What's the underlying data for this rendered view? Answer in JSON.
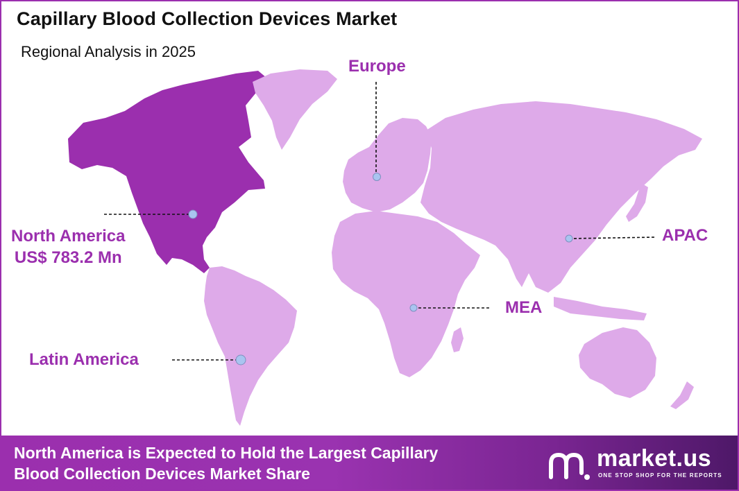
{
  "title": "Capillary Blood Collection Devices Market",
  "subtitle": "Regional Analysis in 2025",
  "colors": {
    "highlight_region": "#9b2fae",
    "other_regions": "#deaae9",
    "label_text": "#9b2fae",
    "marker": "#a9c4f0",
    "footer_start": "#9b2fae",
    "footer_end": "#4e1868"
  },
  "regions": {
    "north_america": {
      "name": "North America",
      "value": "US$ 783.2 Mn",
      "highlighted": true
    },
    "europe": {
      "name": "Europe",
      "highlighted": false
    },
    "apac": {
      "name": "APAC",
      "highlighted": false
    },
    "mea": {
      "name": "MEA",
      "highlighted": false
    },
    "latin_america": {
      "name": "Latin America",
      "highlighted": false
    }
  },
  "footer": {
    "line1": "North America is Expected to Hold the Largest Capillary",
    "line2": "Blood Collection Devices Market Share"
  },
  "logo": {
    "name": "market.us",
    "tagline": "ONE STOP SHOP FOR THE REPORTS"
  }
}
